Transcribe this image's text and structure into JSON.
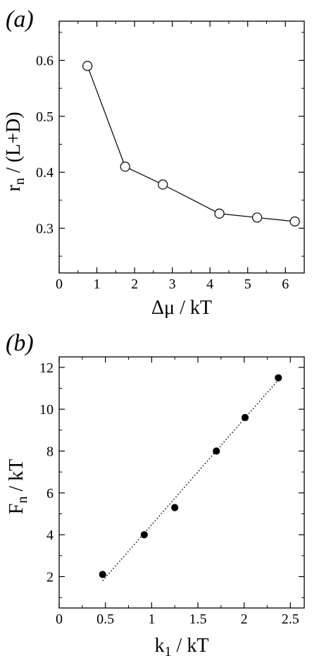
{
  "chart_data": [
    {
      "panel_label": "(a)",
      "type": "line",
      "series": [
        {
          "marker": "open-circle",
          "line": "solid",
          "x": [
            0.75,
            1.75,
            2.75,
            4.25,
            5.25,
            6.25
          ],
          "y": [
            0.59,
            0.41,
            0.378,
            0.326,
            0.319,
            0.312
          ]
        }
      ],
      "xlabel": "Δμ / kT",
      "ylabel_main": "r",
      "ylabel_sub": "n",
      "ylabel_rest": " / (L+D)",
      "xlim": [
        0,
        6.5
      ],
      "ylim": [
        0.22,
        0.67
      ],
      "xticks": [
        0,
        1,
        2,
        3,
        4,
        5,
        6
      ],
      "xtick_labels": [
        "0",
        "1",
        "2",
        "3",
        "4",
        "5",
        "6"
      ],
      "yticks": [
        0.3,
        0.4,
        0.5,
        0.6
      ],
      "ytick_labels": [
        "0.3",
        "0.4",
        "0.5",
        "0.6"
      ],
      "grid": false,
      "colors": {
        "line": "#000000",
        "marker_fill": "#ffffff",
        "axes": "#000000"
      }
    },
    {
      "panel_label": "(b)",
      "type": "scatter",
      "series": [
        {
          "marker": "filled-circle",
          "line": "none",
          "x": [
            0.47,
            0.92,
            1.25,
            1.7,
            2.01,
            2.37
          ],
          "y": [
            2.1,
            4.0,
            5.3,
            8.0,
            9.6,
            11.5
          ]
        },
        {
          "marker": "none",
          "line": "dotted",
          "x": [
            0.47,
            2.37
          ],
          "y": [
            1.8,
            11.4
          ]
        }
      ],
      "xlabel_main": "k",
      "xlabel_sub": "1",
      "xlabel_rest": " / kT",
      "ylabel_main": "F",
      "ylabel_sub": "n",
      "ylabel_rest": " / kT",
      "xlim": [
        0,
        2.65
      ],
      "ylim": [
        0.5,
        12.5
      ],
      "xticks": [
        0,
        0.5,
        1,
        1.5,
        2,
        2.5
      ],
      "xtick_labels": [
        "0",
        "0.5",
        "1",
        "1.5",
        "2",
        "2.5"
      ],
      "yticks": [
        2,
        4,
        6,
        8,
        10,
        12
      ],
      "ytick_labels": [
        "2",
        "4",
        "6",
        "8",
        "10",
        "12"
      ],
      "grid": false,
      "colors": {
        "line": "#000000",
        "marker_fill": "#000000",
        "axes": "#000000"
      }
    }
  ]
}
